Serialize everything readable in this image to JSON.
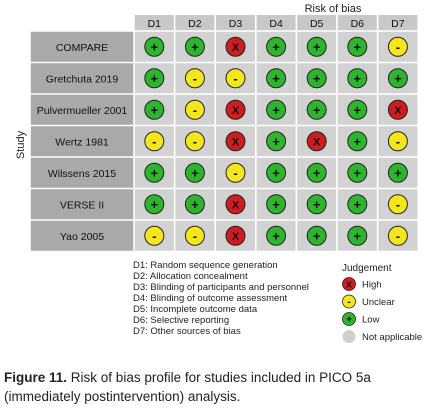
{
  "chart_data": {
    "type": "table",
    "title": "Risk of bias",
    "ylabel": "Study",
    "domains": [
      "D1",
      "D2",
      "D3",
      "D4",
      "D5",
      "D6",
      "D7"
    ],
    "studies": [
      "COMPARE",
      "Gretchuta 2019",
      "Pulvermueller 2001",
      "Wertz 1981",
      "Wilssens 2015",
      "VERSE II",
      "Yao 2005"
    ],
    "judgements": [
      [
        "low",
        "low",
        "high",
        "low",
        "low",
        "low",
        "unclear"
      ],
      [
        "low",
        "unclear",
        "unclear",
        "low",
        "low",
        "low",
        "low"
      ],
      [
        "low",
        "unclear",
        "high",
        "low",
        "low",
        "low",
        "high"
      ],
      [
        "unclear",
        "unclear",
        "high",
        "low",
        "high",
        "low",
        "unclear"
      ],
      [
        "low",
        "low",
        "unclear",
        "low",
        "low",
        "low",
        "low"
      ],
      [
        "low",
        "low",
        "high",
        "low",
        "low",
        "low",
        "unclear"
      ],
      [
        "unclear",
        "unclear",
        "high",
        "low",
        "low",
        "low",
        "unclear"
      ]
    ],
    "domain_descriptions": [
      "D1: Random sequence generation",
      "D2: Allocation concealment",
      "D3: Blinding of participants and personnel",
      "D4: Blinding of outcome assessment",
      "D5: Incomplete outcome data",
      "D6: Selective reporting",
      "D7: Other sources of bias"
    ],
    "legend_title": "Judgement",
    "legend": [
      {
        "key": "high",
        "label": "High",
        "symbol": "X",
        "color": "#d01c1c"
      },
      {
        "key": "unclear",
        "label": "Unclear",
        "symbol": "-",
        "color": "#f5e61c"
      },
      {
        "key": "low",
        "label": "Low",
        "symbol": "+",
        "color": "#2db62d"
      },
      {
        "key": "na",
        "label": "Not applicable",
        "symbol": "",
        "color": "#cfcfcf"
      }
    ]
  },
  "caption": {
    "label": "Figure 11.",
    "text": "Risk of bias profile for studies included in PICO 5a (immediately postintervention) analysis."
  }
}
